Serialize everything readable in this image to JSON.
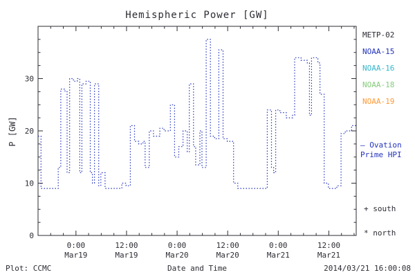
{
  "title": "Hemispheric Power [GW]",
  "axes": {
    "x_label": "Date and Time",
    "y_label": "P [GW]"
  },
  "legend": {
    "satellites": [
      {
        "label": "METP-02",
        "color": "#2b2b33"
      },
      {
        "label": "NOAA-15",
        "color": "#2233bb"
      },
      {
        "label": "NOAA-16",
        "color": "#33b7cc"
      },
      {
        "label": "NOAA-18",
        "color": "#85cc7a"
      },
      {
        "label": "NOAA-19",
        "color": "#ff9933"
      }
    ],
    "ovation_label": "— Ovation\nPrime HPI",
    "ovation_color": "#2233bb",
    "south_marker": "+ south",
    "north_marker": "* north"
  },
  "footer": {
    "plot_credit": "Plot: CCMC",
    "timestamp": "2014/03/21 16:00:08"
  },
  "chart_data": {
    "type": "line",
    "style": "dotted-step",
    "title": "Hemispheric Power [GW]",
    "xlabel": "Date and Time",
    "ylabel": "P [GW]",
    "line_color": "#2233bb",
    "axis_color": "#2b2b33",
    "ylim": [
      0,
      40
    ],
    "y_major_ticks": [
      0,
      10,
      20,
      30
    ],
    "y_tick_labels": [
      "0",
      "10",
      "20",
      "30"
    ],
    "y_minor_step": 2.5,
    "x_hours_range": [
      -9,
      66.5
    ],
    "x_hours_reference": "hours relative to Mar19 00:00",
    "x_major_tick_hours": [
      0,
      12,
      24,
      36,
      48,
      60
    ],
    "x_tick_labels": [
      [
        "0:00",
        "Mar19"
      ],
      [
        "12:00",
        "Mar19"
      ],
      [
        "0:00",
        "Mar20"
      ],
      [
        "12:00",
        "Mar20"
      ],
      [
        "0:00",
        "Mar21"
      ],
      [
        "12:00",
        "Mar21"
      ]
    ],
    "x_minor_step": 3,
    "legend_position": "right",
    "grid": false,
    "series": [
      {
        "name": "Ovation Prime HPI",
        "units": "GW",
        "points": [
          [
            -9,
            19
          ],
          [
            -8.3,
            9
          ],
          [
            -4.2,
            13
          ],
          [
            -3.6,
            28
          ],
          [
            -2.6,
            27.5
          ],
          [
            -2.1,
            12
          ],
          [
            -1.5,
            30
          ],
          [
            -0.6,
            29.5
          ],
          [
            0.3,
            30
          ],
          [
            0.9,
            12
          ],
          [
            1.4,
            29
          ],
          [
            2.4,
            29.5
          ],
          [
            3.4,
            12
          ],
          [
            3.9,
            10
          ],
          [
            4.4,
            29
          ],
          [
            5.4,
            9.5
          ],
          [
            5.9,
            12
          ],
          [
            6.9,
            9
          ],
          [
            10.9,
            10
          ],
          [
            11.9,
            9.5
          ],
          [
            12.9,
            21
          ],
          [
            13.9,
            18
          ],
          [
            14.9,
            17.5
          ],
          [
            15.9,
            18
          ],
          [
            16.4,
            13
          ],
          [
            17.4,
            20
          ],
          [
            18.4,
            19
          ],
          [
            19.9,
            20.5
          ],
          [
            20.9,
            20
          ],
          [
            22.4,
            25
          ],
          [
            23.4,
            15
          ],
          [
            24.4,
            17
          ],
          [
            25.4,
            20
          ],
          [
            26.4,
            16
          ],
          [
            26.9,
            29
          ],
          [
            27.9,
            17
          ],
          [
            28.4,
            13.5
          ],
          [
            29.4,
            20
          ],
          [
            29.9,
            13
          ],
          [
            30.9,
            37.5
          ],
          [
            31.9,
            19
          ],
          [
            32.9,
            18.5
          ],
          [
            33.9,
            35.5
          ],
          [
            34.9,
            18.5
          ],
          [
            35.9,
            18
          ],
          [
            37.4,
            10
          ],
          [
            38.4,
            9
          ],
          [
            44.9,
            9
          ],
          [
            45.4,
            24
          ],
          [
            46.4,
            13
          ],
          [
            46.9,
            12
          ],
          [
            47.4,
            24
          ],
          [
            48.4,
            23.5
          ],
          [
            49.9,
            22.5
          ],
          [
            51.4,
            23
          ],
          [
            51.9,
            34
          ],
          [
            53.4,
            33.5
          ],
          [
            54.9,
            33
          ],
          [
            55.4,
            23
          ],
          [
            55.9,
            34
          ],
          [
            57.4,
            33
          ],
          [
            57.9,
            27
          ],
          [
            58.9,
            10
          ],
          [
            59.9,
            9
          ],
          [
            61.9,
            9.5
          ],
          [
            62.9,
            19.5
          ],
          [
            63.9,
            20
          ],
          [
            65.4,
            21
          ]
        ]
      }
    ]
  }
}
